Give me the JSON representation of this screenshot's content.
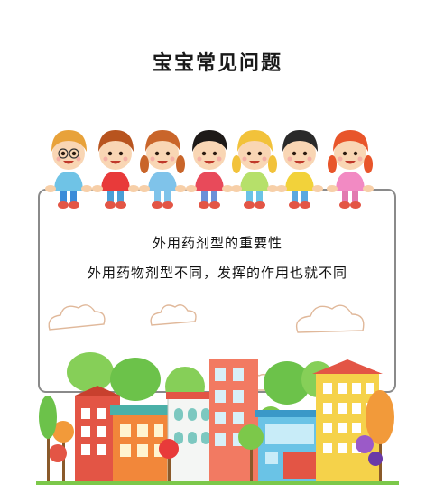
{
  "title": "宝宝常见问题",
  "card": {
    "heading": "外用药剂型的重要性",
    "line": "外用药物剂型不同，发挥的作用也就不同"
  },
  "kids": [
    {
      "name": "kid-glasses",
      "hair": "#e8a23a",
      "shirt": "#6fc3e6",
      "pants": "#3a8bd8"
    },
    {
      "name": "kid-red-shirt",
      "hair": "#b8541e",
      "shirt": "#e83a3a",
      "pants": "#4a9fd6"
    },
    {
      "name": "kid-girl-blue-dress",
      "hair": "#c9652a",
      "shirt": "#7fc3ea",
      "pants": "#7fc3ea"
    },
    {
      "name": "kid-striped-shirt",
      "hair": "#1e1a18",
      "shirt": "#e84a5a",
      "pants": "#6b8fd8"
    },
    {
      "name": "kid-girl-braids",
      "hair": "#f2c23a",
      "shirt": "#b6e06a",
      "pants": "#6ac3e6"
    },
    {
      "name": "kid-number-one-shirt",
      "hair": "#2a2a2a",
      "shirt": "#f2d23a",
      "pants": "#5aa8e0"
    },
    {
      "name": "kid-girl-pigtails",
      "hair": "#e8552a",
      "shirt": "#f28ac3",
      "pants": "#e27ab0"
    }
  ],
  "colors": {
    "card_border": "#8a8a8a",
    "building_red": "#e35545",
    "building_yellow": "#f2b63a",
    "building_blue": "#6ac3e6",
    "tree_green": "#6cc24a"
  }
}
